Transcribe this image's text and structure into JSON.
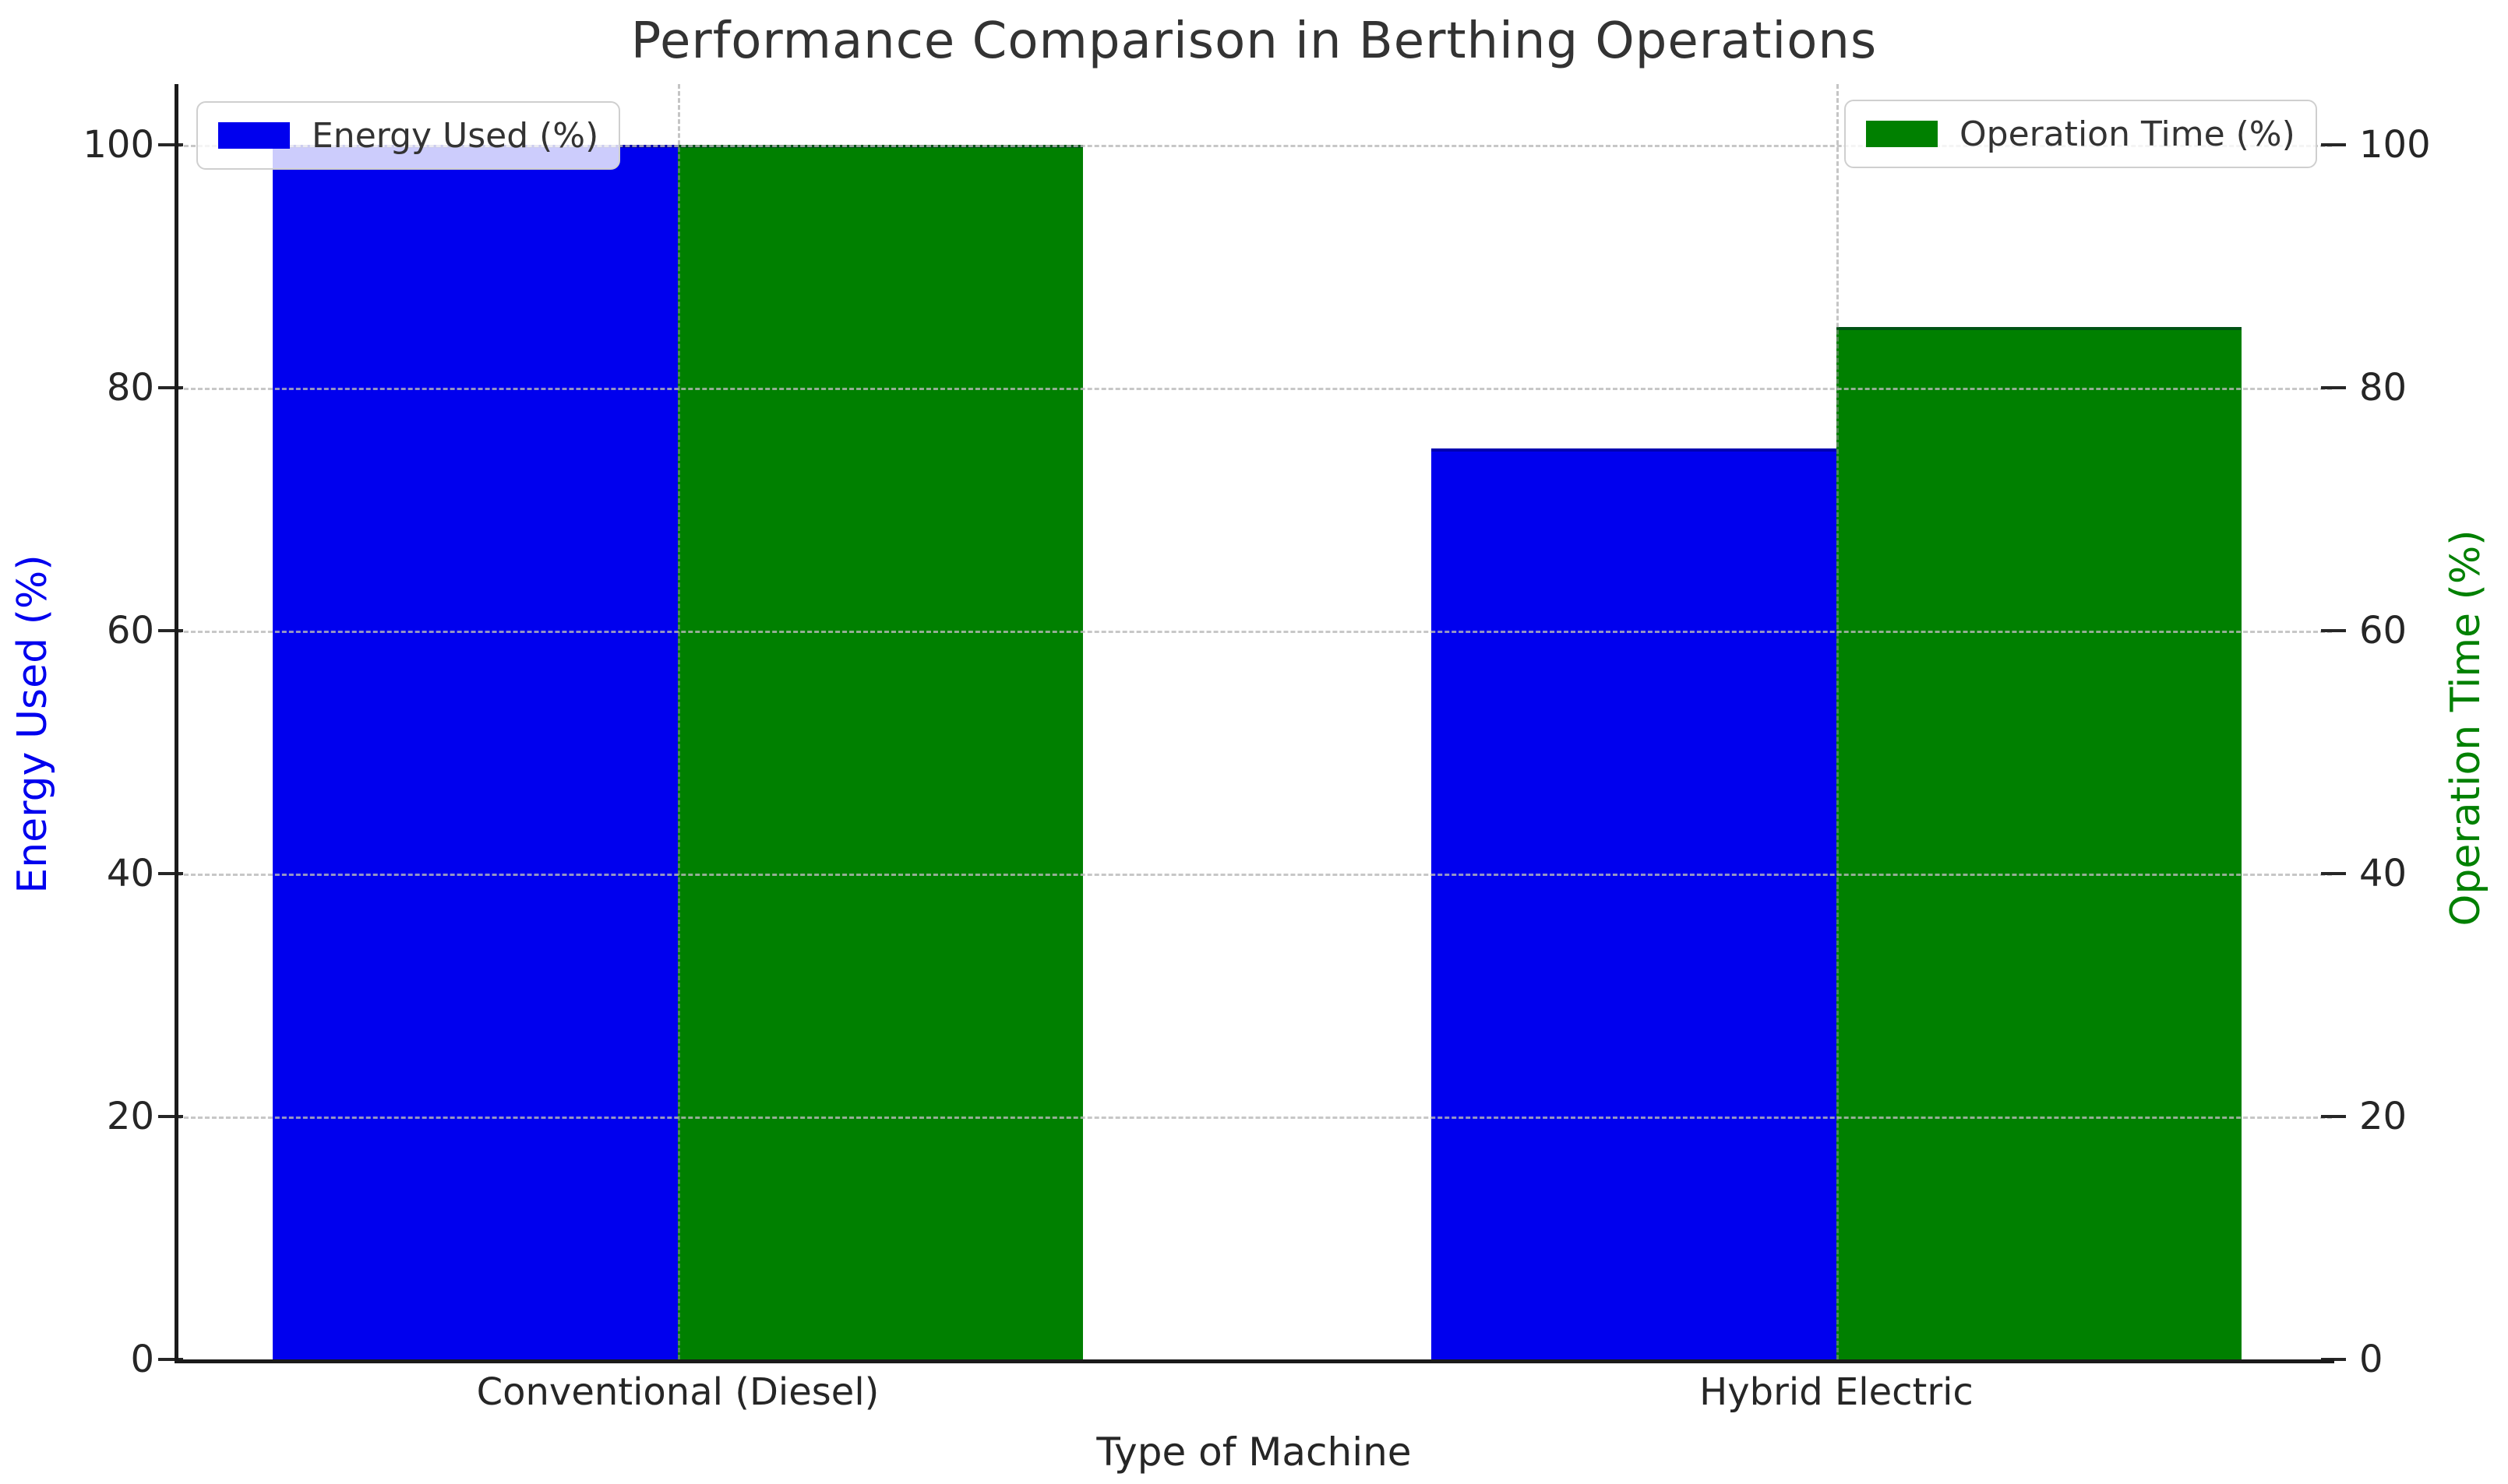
{
  "chart_data": {
    "type": "bar",
    "title": "Performance Comparison in Berthing Operations",
    "xlabel": "Type of Machine",
    "ylabel_left": "Energy Used (%)",
    "ylabel_right": "Operation Time (%)",
    "categories": [
      "Conventional (Diesel)",
      "Hybrid Electric"
    ],
    "series": [
      {
        "name": "Energy Used (%)",
        "axis": "left",
        "color": "#0000ee",
        "values": [
          100,
          75
        ]
      },
      {
        "name": "Operation Time (%)",
        "axis": "right",
        "color": "#008000",
        "values": [
          100,
          85
        ]
      }
    ],
    "ylim": [
      0,
      105
    ],
    "yticks": [
      0,
      20,
      40,
      60,
      80,
      100
    ],
    "grid": "dashed gridlines on both axes, drawn above bars",
    "legend_positions": [
      "upper left",
      "upper right"
    ],
    "colors": {
      "left_axis_label": "#0000ee",
      "right_axis_label": "#008000",
      "tick_text": "#262626",
      "title_text": "#333333",
      "spine": "#1a1a1a",
      "background": "#ffffff"
    }
  }
}
